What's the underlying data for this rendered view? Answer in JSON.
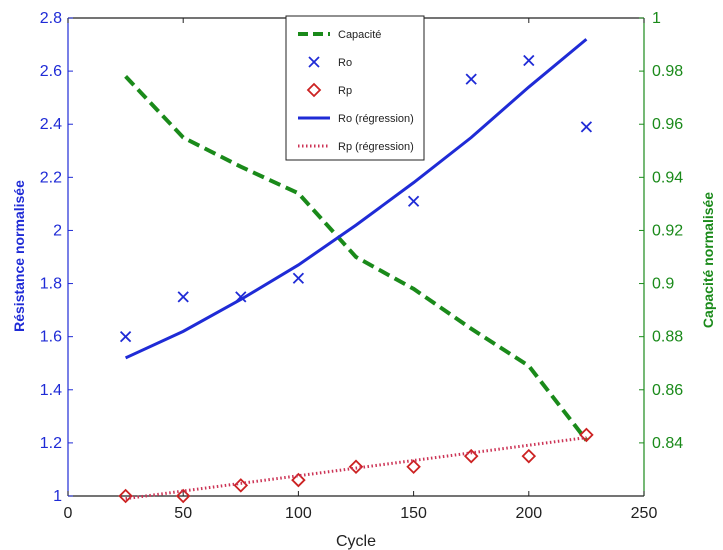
{
  "chart_data": {
    "type": "line",
    "xlabel": "Cycle",
    "ylabel_left": "Résistance normalisée",
    "ylabel_right": "Capacité normalisée",
    "xlim": [
      0,
      250
    ],
    "ylim_left": [
      1,
      2.8
    ],
    "ylim_right": [
      0.82,
      1.0
    ],
    "x_ticks": [
      "0",
      "50",
      "100",
      "150",
      "200",
      "250"
    ],
    "y_left_ticks": [
      "1",
      "1.2",
      "1.4",
      "1.6",
      "1.8",
      "2",
      "2.2",
      "2.4",
      "2.6",
      "2.8"
    ],
    "y_right_ticks": [
      "0.84",
      "0.86",
      "0.88",
      "0.9",
      "0.92",
      "0.94",
      "0.96",
      "0.98",
      "1"
    ],
    "grid": false,
    "legend_position": "top-center",
    "series": [
      {
        "name": "Capacité",
        "axis": "right",
        "style": "dashed",
        "color": "#1a8a1a",
        "x": [
          25,
          50,
          75,
          100,
          125,
          150,
          175,
          200,
          225
        ],
        "values": [
          0.978,
          0.955,
          0.944,
          0.934,
          0.91,
          0.898,
          0.883,
          0.869,
          0.841
        ]
      },
      {
        "name": "Ro",
        "axis": "left",
        "style": "marker-x",
        "color": "#1f2bd6",
        "x": [
          25,
          50,
          75,
          100,
          150,
          175,
          200,
          225
        ],
        "values": [
          1.6,
          1.75,
          1.75,
          1.82,
          2.11,
          2.57,
          2.64,
          2.39
        ]
      },
      {
        "name": "Rp",
        "axis": "left",
        "style": "marker-diamond",
        "color": "#cc2222",
        "x": [
          25,
          50,
          75,
          100,
          125,
          150,
          175,
          200,
          225
        ],
        "values": [
          1.0,
          1.0,
          1.04,
          1.06,
          1.11,
          1.11,
          1.15,
          1.15,
          1.23
        ]
      },
      {
        "name": "Ro (régression)",
        "axis": "left",
        "style": "solid",
        "color": "#1f2bd6",
        "x": [
          25,
          50,
          75,
          100,
          125,
          150,
          175,
          200,
          225
        ],
        "values": [
          1.52,
          1.62,
          1.74,
          1.87,
          2.02,
          2.18,
          2.35,
          2.54,
          2.72
        ]
      },
      {
        "name": "Rp (régression)",
        "axis": "left",
        "style": "dotted",
        "color": "#cc3355",
        "x": [
          25,
          225
        ],
        "values": [
          0.99,
          1.22
        ]
      }
    ]
  }
}
